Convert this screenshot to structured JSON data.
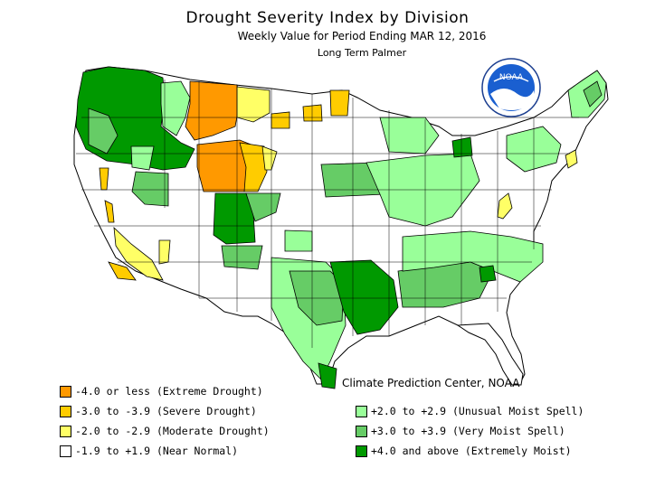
{
  "title": "Drought Severity Index by Division",
  "subtitle": "Weekly Value for Period Ending MAR 12, 2016",
  "subtitle2": "Long Term Palmer",
  "credit": "Climate Prediction Center, NOAA",
  "logo_text": "NOAA",
  "colors": {
    "extreme_drought": "#ff9900",
    "severe_drought": "#ffcc00",
    "moderate_drought": "#ffff66",
    "near_normal": "#ffffff",
    "unusual_moist": "#99ff99",
    "very_moist": "#66cc66",
    "extremely_moist": "#009900"
  },
  "legend": [
    {
      "label": "-4.0 or less (Extreme Drought)",
      "color": "#ff9900"
    },
    {
      "label": "-3.0 to -3.9 (Severe Drought)",
      "color": "#ffcc00"
    },
    {
      "label": "-2.0 to -2.9 (Moderate Drought)",
      "color": "#ffff66"
    },
    {
      "label": "-1.9 to +1.9 (Near Normal)",
      "color": "#ffffff"
    },
    {
      "label": "+2.0 to +2.9 (Unusual Moist Spell)",
      "color": "#99ff99"
    },
    {
      "label": "+3.0 to +3.9 (Very Moist Spell)",
      "color": "#66cc66"
    },
    {
      "label": "+4.0 and above (Extremely Moist)",
      "color": "#009900"
    }
  ]
}
